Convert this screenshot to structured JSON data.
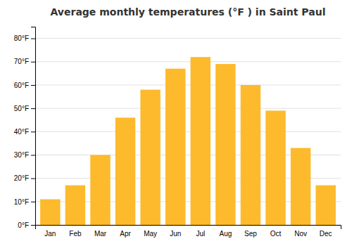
{
  "chart_data": {
    "type": "bar",
    "title": "Average monthly temperatures (°F ) in Saint Paul",
    "categories": [
      "Jan",
      "Feb",
      "Mar",
      "Apr",
      "May",
      "Jun",
      "Jul",
      "Aug",
      "Sep",
      "Oct",
      "Nov",
      "Dec"
    ],
    "values": [
      11,
      17,
      30,
      46,
      58,
      67,
      72,
      69,
      60,
      49,
      33,
      17
    ],
    "color": "#FDBA2C",
    "ylim": [
      0,
      85
    ],
    "yticks": [
      {
        "value": 0,
        "label": "0°F"
      },
      {
        "value": 10,
        "label": "10°F"
      },
      {
        "value": 20,
        "label": "20°F"
      },
      {
        "value": 30,
        "label": "30°F"
      },
      {
        "value": 40,
        "label": "40°F"
      },
      {
        "value": 50,
        "label": "50°F"
      },
      {
        "value": 60,
        "label": "60°F"
      },
      {
        "value": 70,
        "label": "70°F"
      },
      {
        "value": 80,
        "label": "80°F"
      }
    ],
    "grid": true
  }
}
